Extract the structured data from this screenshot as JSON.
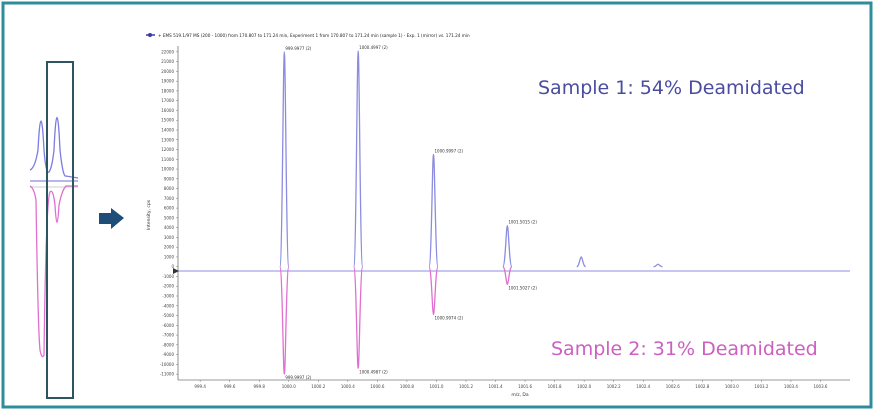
{
  "colors": {
    "border": "#2e8c9c",
    "sample1": "#8c8ce0",
    "sample2": "#e070d0",
    "sample1_label": "#4a4ca0",
    "sample2_label": "#cc5fbf",
    "arrow": "#1e4e78",
    "inset_box": "#2d5560"
  },
  "labels": {
    "sample1": "Sample 1: 54% Deamidated",
    "sample2": "Sample 2: 31% Deamidated",
    "arrow_icon": "right-arrow-icon"
  },
  "chart_data": {
    "type": "line",
    "title": "+ EMS 519.1/97 MS (200 - 1000) from 170.807 to 171.24 min, Experiment 1 from 170.807 to 171.24 min (sample 1) - Exp. 1 (mirror) vs. 171.24 min",
    "xlabel": "m/z, Da",
    "ylabel": "Intensity, cps",
    "x_ticks": [
      "999.4",
      "999.6",
      "999.8",
      "1000.0",
      "1000.2",
      "1000.4",
      "1000.6",
      "1000.8",
      "1001.0",
      "1001.2",
      "1001.4",
      "1001.6",
      "1001.8",
      "1002.0",
      "1002.2",
      "1002.4",
      "1002.6",
      "1002.8",
      "1003.0",
      "1003.2",
      "1003.4",
      "1003.6"
    ],
    "xlim": [
      999.25,
      1003.8
    ],
    "y_ticks": [
      22000,
      21000,
      20000,
      19000,
      18000,
      17000,
      16000,
      15000,
      14000,
      13000,
      12000,
      11000,
      10000,
      9000,
      8000,
      7000,
      6000,
      5000,
      4000,
      3000,
      2000,
      1000,
      0,
      -1000,
      -2000,
      -3000,
      -4000,
      -5000,
      -6000,
      -7000,
      -8000,
      -9000,
      -10000,
      -11000
    ],
    "ylim": [
      -11600,
      22600
    ],
    "series": [
      {
        "name": "Sample 1",
        "peaks": [
          {
            "x": 999.97,
            "y": 22000,
            "label": "999.9977 (2)"
          },
          {
            "x": 1000.47,
            "y": 22100,
            "label": "1000.4997 (2)"
          },
          {
            "x": 1000.98,
            "y": 11500,
            "label": "1000.9997 (2)"
          },
          {
            "x": 1001.48,
            "y": 4200,
            "label": "1001.5015 (2)"
          },
          {
            "x": 1001.98,
            "y": 1000,
            "label": ""
          },
          {
            "x": 1002.5,
            "y": 250,
            "label": ""
          }
        ]
      },
      {
        "name": "Sample 2",
        "peaks": [
          {
            "x": 999.97,
            "y": -11000,
            "label": "999.9997 (2)"
          },
          {
            "x": 1000.47,
            "y": -10400,
            "label": "1000.4987 (2)"
          },
          {
            "x": 1000.98,
            "y": -4900,
            "label": "1000.9974 (2)"
          },
          {
            "x": 1001.48,
            "y": -1800,
            "label": "1001.5027 (2)"
          }
        ]
      }
    ]
  }
}
